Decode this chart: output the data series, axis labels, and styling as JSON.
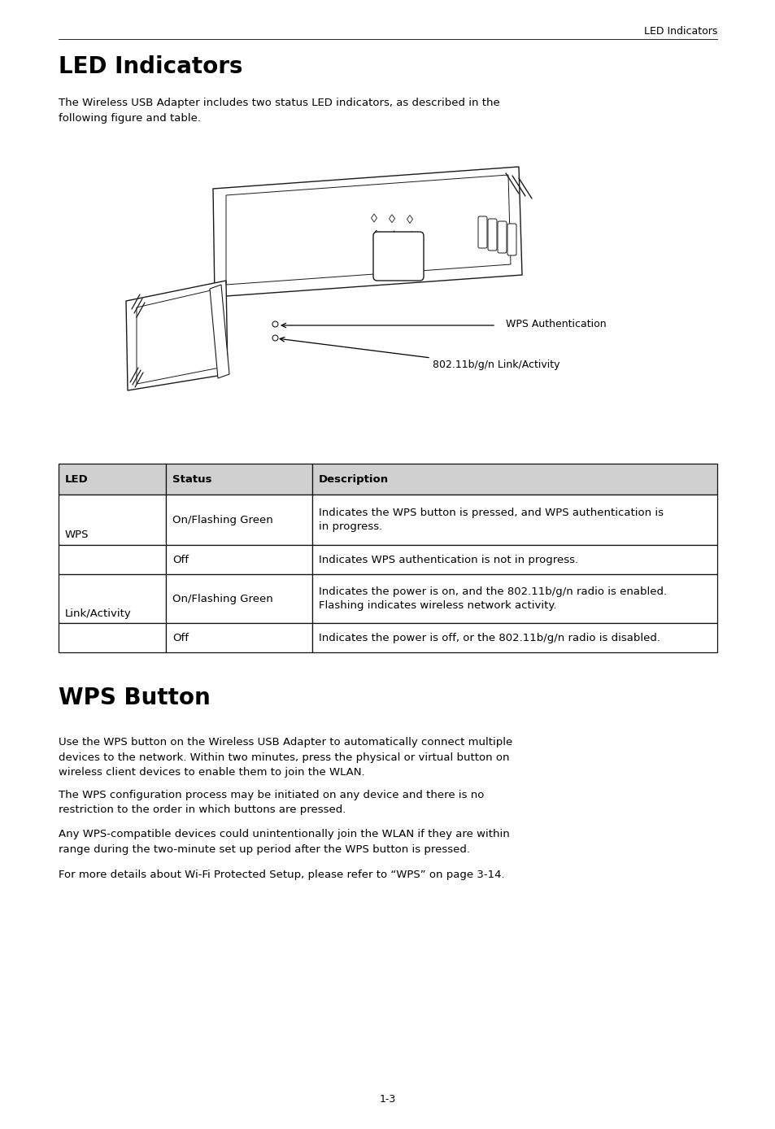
{
  "page_header": "LED Indicators",
  "section1_title": "LED Indicators",
  "section1_intro": "The Wireless USB Adapter includes two status LED indicators, as described in the\nfollowing figure and table.",
  "wps_auth_label": "WPS Authentication",
  "link_activity_label": "802.11b/g/n Link/Activity",
  "table_headers": [
    "LED",
    "Status",
    "Description"
  ],
  "table_rows": [
    [
      "WPS",
      "On/Flashing Green",
      "Indicates the WPS button is pressed, and WPS authentication is\nin progress."
    ],
    [
      "",
      "Off",
      "Indicates WPS authentication is not in progress."
    ],
    [
      "Link/Activity",
      "On/Flashing Green",
      "Indicates the power is on, and the 802.11b/g/n radio is enabled.\nFlashing indicates wireless network activity."
    ],
    [
      "",
      "Off",
      "Indicates the power is off, or the 802.11b/g/n radio is disabled."
    ]
  ],
  "section2_title": "WPS Button",
  "section2_paragraphs": [
    "Use the WPS button on the Wireless USB Adapter to automatically connect multiple\ndevices to the network. Within two minutes, press the physical or virtual button on\nwireless client devices to enable them to join the WLAN.",
    "The WPS configuration process may be initiated on any device and there is no\nrestriction to the order in which buttons are pressed.",
    "Any WPS-compatible devices could unintentionally join the WLAN if they are within\nrange during the two-minute set up period after the WPS button is pressed.",
    "For more details about Wi-Fi Protected Setup, please refer to “WPS” on page 3-14."
  ],
  "page_number": "1-3",
  "bg_color": "#ffffff",
  "text_color": "#000000",
  "table_header_bg": "#d0d0d0",
  "table_border_color": "#000000"
}
